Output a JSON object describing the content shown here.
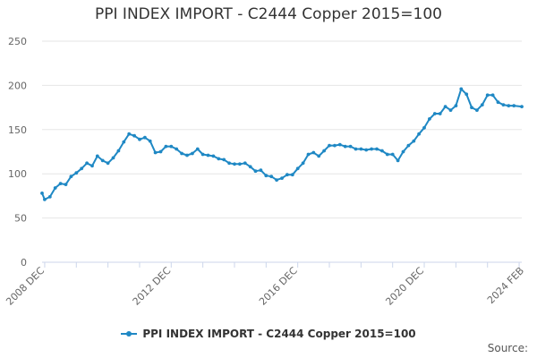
{
  "chart_data": {
    "type": "line",
    "title": "PPI INDEX IMPORT - C2444 Copper 2015=100",
    "xlabel": "",
    "ylabel": "",
    "ylim": [
      0,
      250
    ],
    "yticks": [
      0,
      50,
      100,
      150,
      200,
      250
    ],
    "xlim": [
      "2008-12",
      "2024-02"
    ],
    "xtick_labels": [
      "2008 DEC",
      "2012 DEC",
      "2016 DEC",
      "2020 DEC",
      "2024 FEB"
    ],
    "xtick_positions": [
      "2008-12",
      "2012-12",
      "2016-12",
      "2020-12",
      "2024-02"
    ],
    "grid": "horizontal",
    "legend_position": "bottom",
    "series": [
      {
        "name": "PPI INDEX IMPORT - C2444 Copper 2015=100",
        "color": "#1f88c4",
        "x": [
          "2008-12",
          "2009-01",
          "2009-03",
          "2009-05",
          "2009-07",
          "2009-09",
          "2009-11",
          "2010-01",
          "2010-03",
          "2010-05",
          "2010-07",
          "2010-09",
          "2010-11",
          "2011-01",
          "2011-03",
          "2011-05",
          "2011-07",
          "2011-09",
          "2011-11",
          "2012-01",
          "2012-03",
          "2012-05",
          "2012-07",
          "2012-09",
          "2012-11",
          "2013-01",
          "2013-03",
          "2013-05",
          "2013-07",
          "2013-09",
          "2013-11",
          "2014-01",
          "2014-03",
          "2014-05",
          "2014-07",
          "2014-09",
          "2014-11",
          "2015-01",
          "2015-03",
          "2015-05",
          "2015-07",
          "2015-09",
          "2015-11",
          "2016-01",
          "2016-03",
          "2016-05",
          "2016-07",
          "2016-09",
          "2016-11",
          "2017-01",
          "2017-03",
          "2017-05",
          "2017-07",
          "2017-09",
          "2017-11",
          "2018-01",
          "2018-03",
          "2018-05",
          "2018-07",
          "2018-09",
          "2018-11",
          "2019-01",
          "2019-03",
          "2019-05",
          "2019-07",
          "2019-09",
          "2019-11",
          "2020-01",
          "2020-03",
          "2020-05",
          "2020-07",
          "2020-09",
          "2020-11",
          "2021-01",
          "2021-03",
          "2021-05",
          "2021-07",
          "2021-09",
          "2021-11",
          "2022-01",
          "2022-03",
          "2022-05",
          "2022-07",
          "2022-09",
          "2022-11",
          "2023-01",
          "2023-03",
          "2023-05",
          "2023-07",
          "2023-09",
          "2023-11",
          "2024-02"
        ],
        "values": [
          78,
          71,
          74,
          84,
          89,
          88,
          97,
          101,
          106,
          112,
          109,
          120,
          115,
          112,
          118,
          126,
          136,
          145,
          143,
          139,
          141,
          137,
          124,
          125,
          131,
          131,
          128,
          123,
          121,
          123,
          128,
          122,
          121,
          120,
          117,
          116,
          112,
          111,
          111,
          112,
          108,
          103,
          104,
          98,
          97,
          93,
          95,
          99,
          99,
          106,
          112,
          122,
          124,
          120,
          126,
          132,
          132,
          133,
          131,
          131,
          128,
          128,
          127,
          128,
          128,
          126,
          122,
          122,
          115,
          125,
          132,
          137,
          145,
          152,
          162,
          168,
          168,
          176,
          172,
          177,
          196,
          190,
          175,
          172,
          178,
          189,
          189,
          181,
          178,
          177,
          177,
          176
        ]
      }
    ]
  },
  "source_label": "Source:"
}
